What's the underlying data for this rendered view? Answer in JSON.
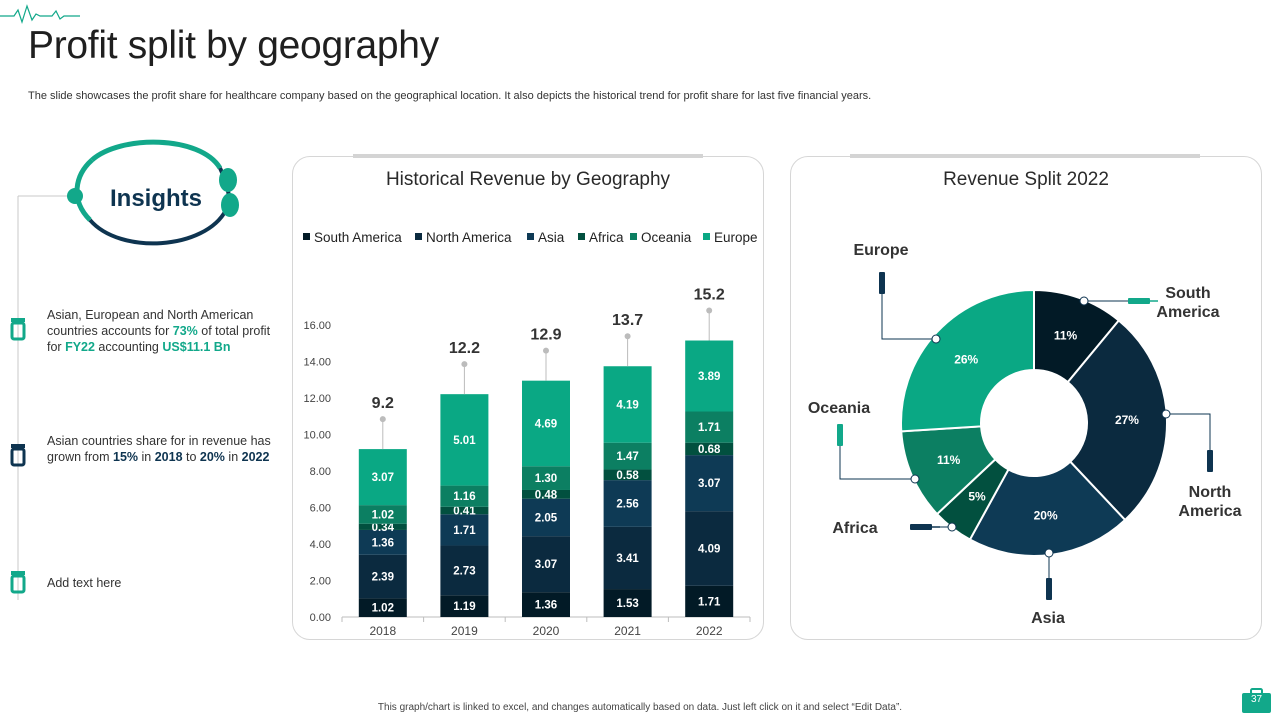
{
  "slide": {
    "title": "Profit split by geography",
    "subtitle": "The slide showcases the profit share for healthcare company based on the geographical location. It also depicts the historical trend for profit share for last five  financial years.",
    "footer": "This graph/chart is linked to excel, and changes automatically based on data. Just left click on it and select “Edit Data”.",
    "page_number": "37"
  },
  "insights": {
    "heading": "Insights",
    "item1": {
      "t1": "Asian, European and North American countries accounts for ",
      "v1": "73%",
      "t2": " of total profit for ",
      "v2": "FY22",
      "t3": " accounting ",
      "v3": "US$11.1 Bn"
    },
    "item2": {
      "t1": "Asian countries share for in revenue  has grown from ",
      "v1": "15%",
      "t2": " in ",
      "v2": "2018",
      "t3": " to ",
      "v3": "20%",
      "t4": " in ",
      "v4": "2022"
    },
    "item3": {
      "text": "Add text here"
    }
  },
  "colors": {
    "South America": "#021a26",
    "North America": "#0b2a3f",
    "Asia": "#0e3a55",
    "Africa": "#02503f",
    "Oceania": "#0c7f62",
    "Europe": "#0aa884",
    "accent": "#12a88a"
  },
  "chart_data": [
    {
      "type": "bar",
      "stacked": true,
      "title": "Historical Revenue by Geography",
      "categories": [
        "2018",
        "2019",
        "2020",
        "2021",
        "2022"
      ],
      "series": [
        {
          "name": "South America",
          "values": [
            1.02,
            1.19,
            1.36,
            1.53,
            1.71
          ]
        },
        {
          "name": "North America",
          "values": [
            2.39,
            2.73,
            3.07,
            3.41,
            4.09
          ]
        },
        {
          "name": "Asia",
          "values": [
            1.36,
            1.71,
            2.05,
            2.56,
            3.07
          ]
        },
        {
          "name": "Africa",
          "values": [
            0.34,
            0.41,
            0.48,
            0.58,
            0.68
          ]
        },
        {
          "name": "Oceania",
          "values": [
            1.02,
            1.16,
            1.3,
            1.47,
            1.71
          ]
        },
        {
          "name": "Europe",
          "values": [
            3.07,
            5.01,
            4.69,
            4.19,
            3.89
          ]
        }
      ],
      "totals": [
        9.2,
        12.2,
        12.9,
        13.7,
        15.2
      ],
      "total_labels": [
        "9.2",
        "12.2",
        "12.9",
        "13.7",
        "15.2"
      ],
      "ylim": [
        0,
        16
      ],
      "yticks": [
        "0.00",
        "2.00",
        "4.00",
        "6.00",
        "8.00",
        "10.00",
        "12.00",
        "14.00",
        "16.00"
      ],
      "legend_position": "top"
    },
    {
      "type": "pie",
      "donut": true,
      "title": "Revenue Split 2022",
      "slices": [
        {
          "name": "South America",
          "value": 11,
          "label": "11%",
          "callout": [
            "South",
            "America"
          ]
        },
        {
          "name": "North America",
          "value": 27,
          "label": "27%",
          "callout": [
            "North",
            "America"
          ]
        },
        {
          "name": "Asia",
          "value": 20,
          "label": "20%",
          "callout": [
            "Asia"
          ]
        },
        {
          "name": "Africa",
          "value": 5,
          "label": "5%",
          "callout": [
            "Africa"
          ]
        },
        {
          "name": "Oceania",
          "value": 11,
          "label": "11%",
          "callout": [
            "Oceania"
          ]
        },
        {
          "name": "Europe",
          "value": 26,
          "label": "26%",
          "callout": [
            "Europe"
          ]
        }
      ]
    }
  ]
}
